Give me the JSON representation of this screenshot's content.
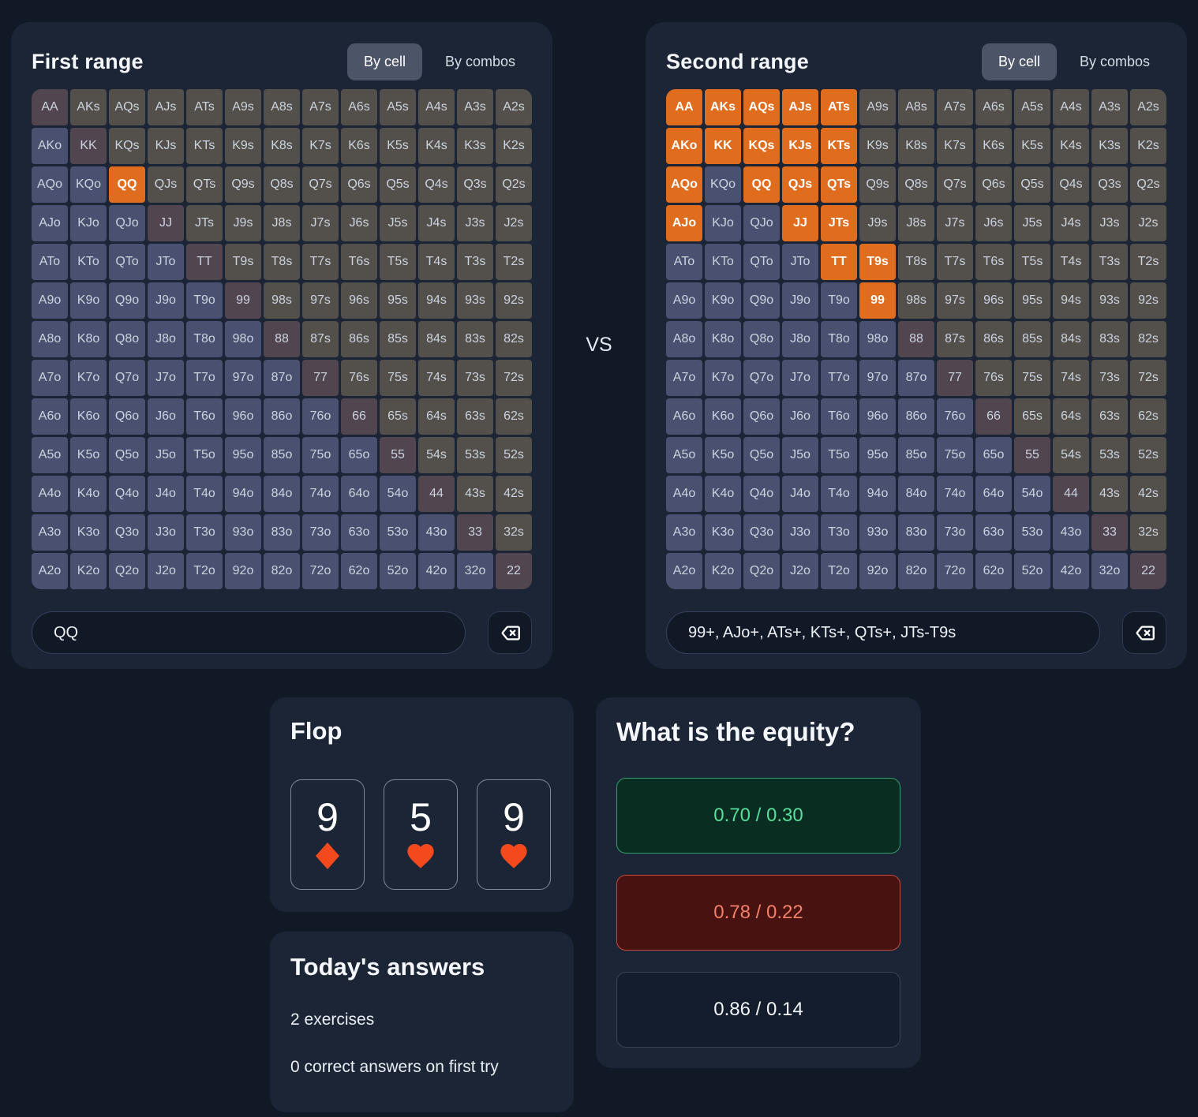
{
  "vs_label": "VS",
  "grid": {
    "ranks": [
      "A",
      "K",
      "Q",
      "J",
      "T",
      "9",
      "8",
      "7",
      "6",
      "5",
      "4",
      "3",
      "2"
    ]
  },
  "first_range": {
    "title": "First range",
    "tab_by_cell": "By cell",
    "tab_by_combos": "By combos",
    "input_value": "QQ",
    "selected": [
      "QQ"
    ]
  },
  "second_range": {
    "title": "Second range",
    "tab_by_cell": "By cell",
    "tab_by_combos": "By combos",
    "input_value": "99+, AJo+, ATs+, KTs+, QTs+, JTs-T9s",
    "selected": [
      "AA",
      "AKs",
      "AQs",
      "AJs",
      "ATs",
      "AKo",
      "KK",
      "KQs",
      "KJs",
      "KTs",
      "AQo",
      "QQ",
      "QJs",
      "QTs",
      "AJo",
      "JJ",
      "JTs",
      "TT",
      "T9s",
      "99"
    ]
  },
  "flop": {
    "title": "Flop",
    "cards": [
      {
        "rank": "9",
        "suit": "diamond"
      },
      {
        "rank": "5",
        "suit": "heart"
      },
      {
        "rank": "9",
        "suit": "heart"
      }
    ]
  },
  "today": {
    "title": "Today's answers",
    "exercises_line": "2 exercises",
    "correct_line": "0 correct answers on first try"
  },
  "equity": {
    "title": "What is the equity?",
    "options": [
      {
        "label": "0.70 / 0.30",
        "state": "correct"
      },
      {
        "label": "0.78 / 0.22",
        "state": "incorrect"
      },
      {
        "label": "0.86 / 0.14",
        "state": "neutral"
      }
    ]
  },
  "colors": {
    "selected_cell": "#E06C1E",
    "suit_red": "#F4491D",
    "correct_text": "#57DE9C",
    "incorrect_text": "#F28068"
  }
}
